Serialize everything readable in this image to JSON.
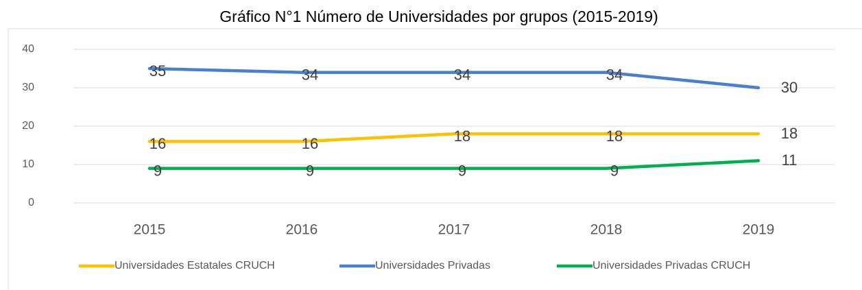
{
  "chart_data": {
    "type": "line",
    "title": "Gráfico N°1 Número de Universidades por grupos (2015-2019)",
    "categories": [
      "2015",
      "2016",
      "2017",
      "2018",
      "2019"
    ],
    "series": [
      {
        "name": "Universidades Estatales CRUCH",
        "color": "#FFC000",
        "values": [
          16,
          16,
          18,
          18,
          18
        ]
      },
      {
        "name": "Universidades Privadas",
        "color": "#4A7FD0",
        "values": [
          35,
          34,
          34,
          34,
          30
        ]
      },
      {
        "name": "Universidades Privadas CRUCH",
        "color": "#00B050",
        "values": [
          9,
          9,
          9,
          9,
          11
        ]
      }
    ],
    "ylim": [
      0,
      40
    ],
    "yticks": [
      0,
      10,
      20,
      30,
      40
    ],
    "grid": true,
    "legend": "bottom",
    "data_labels": true
  }
}
